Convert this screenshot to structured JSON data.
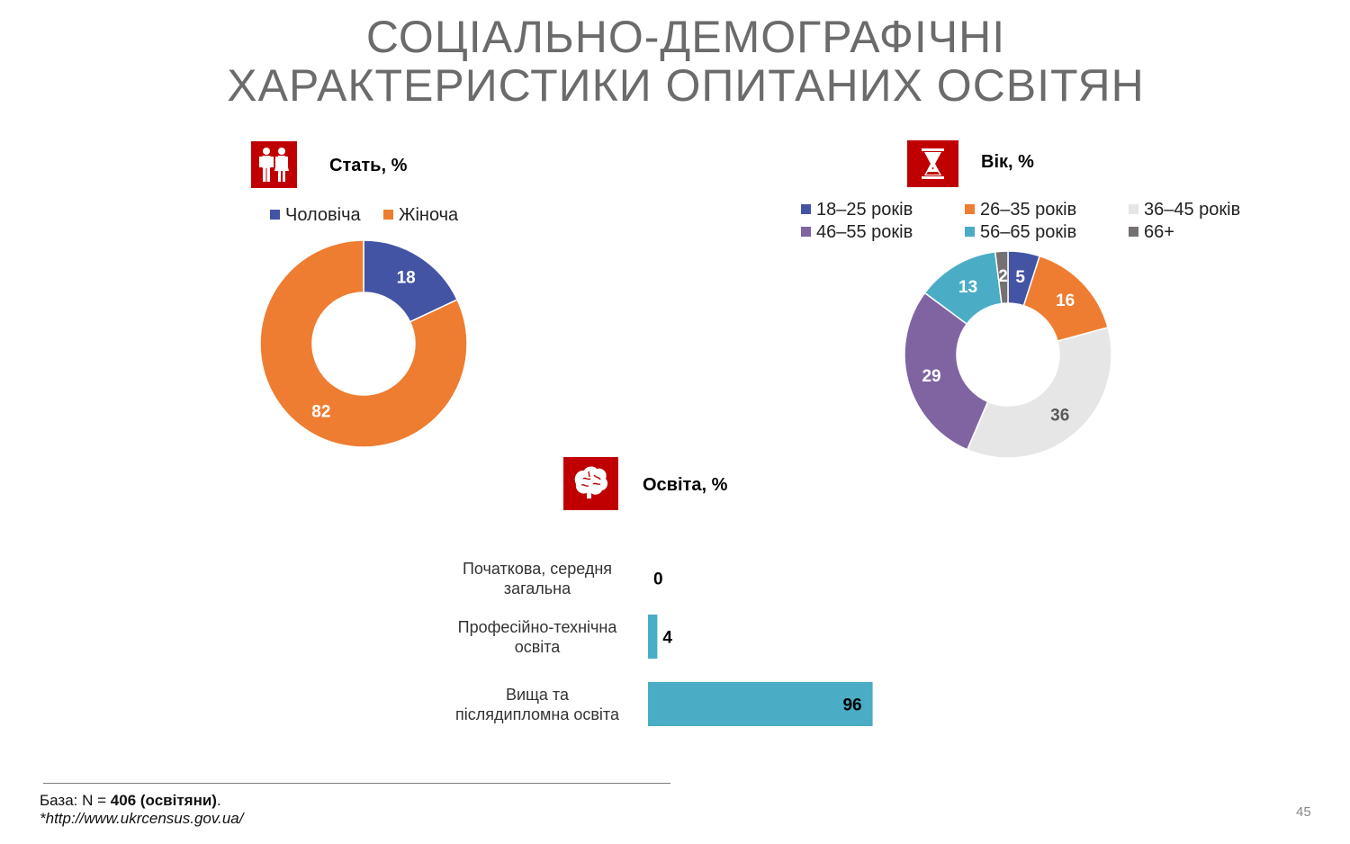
{
  "title": {
    "line1": "СОЦІАЛЬНО-ДЕМОГРАФІЧНІ",
    "line2": "ХАРАКТЕРИСТИКИ ОПИТАНИХ ОСВІТЯН"
  },
  "sections": {
    "gender": {
      "label": "Стать, %",
      "icon": "people-icon"
    },
    "age": {
      "label": "Вік, %",
      "icon": "hourglass-icon"
    },
    "education": {
      "label": "Освіта, %",
      "icon": "brain-icon"
    }
  },
  "colors": {
    "accent": "#c00000",
    "blue": "#4454a4",
    "orange": "#ee7d31",
    "light_gray": "#e6e6e6",
    "purple": "#8064a2",
    "teal": "#4bacc6",
    "dark_gray": "#767171"
  },
  "chart_data": [
    {
      "type": "pie",
      "variant": "donut",
      "title": "Стать, %",
      "legend_position": "top",
      "series": [
        {
          "name": "Чоловіча",
          "value": 18,
          "color": "#4454a4"
        },
        {
          "name": "Жіноча",
          "value": 82,
          "color": "#ee7d31"
        }
      ]
    },
    {
      "type": "pie",
      "variant": "donut",
      "title": "Вік, %",
      "legend_position": "top",
      "series": [
        {
          "name": "18–25 років",
          "value": 5,
          "color": "#4454a4"
        },
        {
          "name": "26–35 років",
          "value": 16,
          "color": "#ee7d31"
        },
        {
          "name": "36–45 років",
          "value": 36,
          "color": "#e6e6e6"
        },
        {
          "name": "46–55 років",
          "value": 29,
          "color": "#8064a2"
        },
        {
          "name": "56–65 років",
          "value": 13,
          "color": "#4bacc6"
        },
        {
          "name": "66+",
          "value": 2,
          "color": "#767171"
        }
      ]
    },
    {
      "type": "bar",
      "orientation": "horizontal",
      "title": "Освіта, %",
      "xlim": [
        0,
        100
      ],
      "grid": false,
      "categories": [
        "Початкова, середня загальна",
        "Професійно-технічна освіта",
        "Вища та післядипломна освіта"
      ],
      "category_lines": [
        [
          "Початкова, середня",
          "загальна"
        ],
        [
          "Професійно-технічна",
          "освіта"
        ],
        [
          "Вища та",
          "післядипломна освіта"
        ]
      ],
      "values": [
        0,
        4,
        96
      ],
      "color": "#4bacc6"
    }
  ],
  "footer": {
    "base_prefix": "База: N = ",
    "base_bold": "406 (освітяни)",
    "base_suffix": ".",
    "source": "*http://www.ukrcensus.gov.ua/"
  },
  "page_number": "45"
}
